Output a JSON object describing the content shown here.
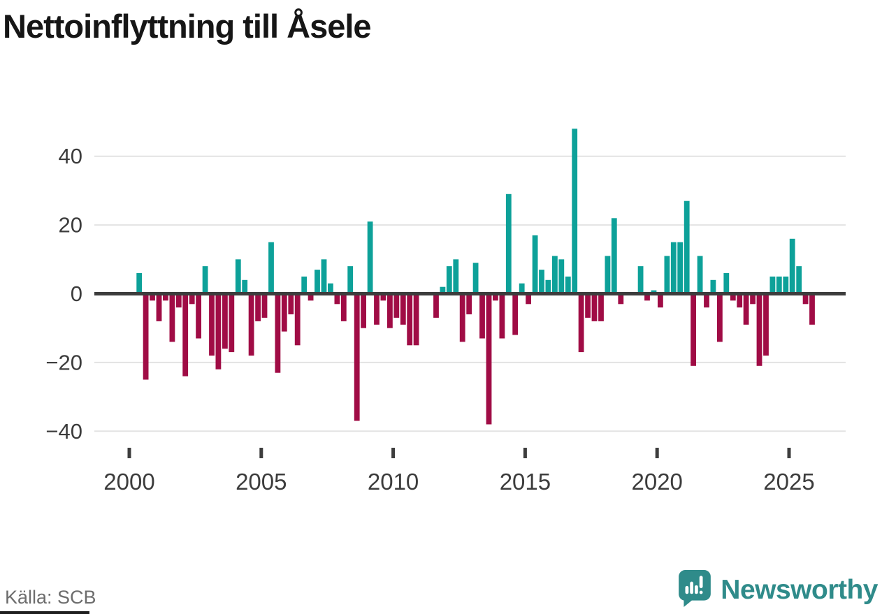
{
  "title": "Nettoinflyttning till Åsele",
  "source": "Källa: SCB",
  "branding": {
    "wordmark": "Newsworthy",
    "logo_color": "#2f8b8a"
  },
  "colors": {
    "positive_bar": "#0da199",
    "negative_bar": "#a00c45",
    "zero_line": "#3d3d3d",
    "gridline": "#e3e3e3",
    "axis_text": "#3c3c3c",
    "title_text": "#161616",
    "source_text": "#6d6d6d"
  },
  "chart_data": {
    "type": "bar",
    "title": "Nettoinflyttning till Åsele",
    "frequency": "quarterly",
    "period_start": "2000-Q1",
    "period_end": "2025-Q4",
    "values": [
      0,
      6,
      -25,
      -2,
      -8,
      -2,
      -14,
      -4,
      -24,
      -3,
      -13,
      8,
      -18,
      -22,
      -16,
      -17,
      10,
      4,
      -18,
      -8,
      -7,
      15,
      -23,
      -11,
      -6,
      -15,
      5,
      -2,
      7,
      10,
      3,
      -3,
      -8,
      8,
      -37,
      -10,
      21,
      -9,
      -2,
      -10,
      -7,
      -9,
      -15,
      -15,
      0,
      0,
      -7,
      2,
      8,
      10,
      -14,
      -6,
      9,
      -13,
      -38,
      -2,
      -13,
      29,
      -12,
      3,
      -3,
      17,
      7,
      4,
      11,
      10,
      5,
      48,
      -17,
      -7,
      -8,
      -8,
      11,
      22,
      -3,
      0,
      0,
      8,
      -2,
      1,
      -4,
      11,
      15,
      15,
      27,
      -21,
      11,
      -4,
      4,
      -14,
      6,
      -2,
      -4,
      -9,
      -3,
      -21,
      -18,
      5,
      5,
      5,
      16,
      8,
      -3,
      -9
    ],
    "y_ticks": [
      40,
      20,
      0,
      -20,
      -40
    ],
    "y_tick_labels": [
      "40",
      "20",
      "0",
      "−20",
      "−40"
    ],
    "x_ticks": [
      2000,
      2005,
      2010,
      2015,
      2020,
      2025
    ],
    "x_tick_labels": [
      "2000",
      "2005",
      "2010",
      "2015",
      "2020",
      "2025"
    ],
    "ylim": [
      -42,
      50
    ],
    "grid": "horizontal",
    "legend": "none",
    "positive_color": "#0da199",
    "negative_color": "#a00c45"
  }
}
